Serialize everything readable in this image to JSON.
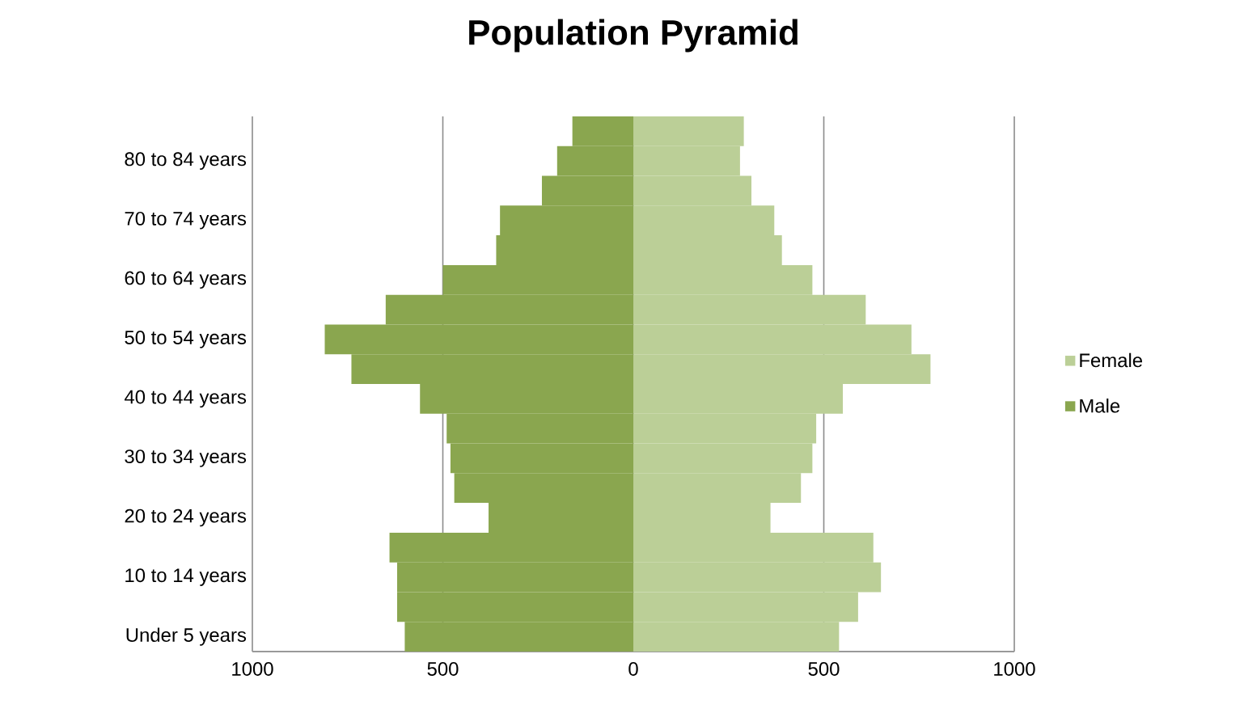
{
  "chart_data": {
    "type": "bar",
    "orientation": "horizontal",
    "title": "Population Pyramid",
    "categories": [
      null,
      "80 to 84 years",
      null,
      "70 to 74 years",
      null,
      "60 to 64 years",
      null,
      "50 to 54 years",
      null,
      "40 to 44 years",
      null,
      "30 to 34 years",
      null,
      "20 to 24 years",
      null,
      "10 to 14 years",
      null,
      "Under 5 years"
    ],
    "series": [
      {
        "name": "Female",
        "color": "#bbcf97",
        "values": [
          290,
          280,
          310,
          370,
          390,
          470,
          610,
          730,
          780,
          550,
          480,
          470,
          440,
          360,
          630,
          650,
          590,
          540
        ]
      },
      {
        "name": "Male",
        "color": "#8aa64f",
        "values": [
          -160,
          -200,
          -240,
          -350,
          -360,
          -500,
          -650,
          -810,
          -740,
          -560,
          -490,
          -480,
          -470,
          -380,
          -640,
          -620,
          -620,
          -600
        ]
      }
    ],
    "xlim": [
      -1000,
      1000
    ],
    "xticks": [
      {
        "value": -1000,
        "label": "1000"
      },
      {
        "value": -500,
        "label": "500"
      },
      0,
      500,
      1000
    ],
    "grid": "x",
    "legend": "right",
    "stacked": true
  }
}
